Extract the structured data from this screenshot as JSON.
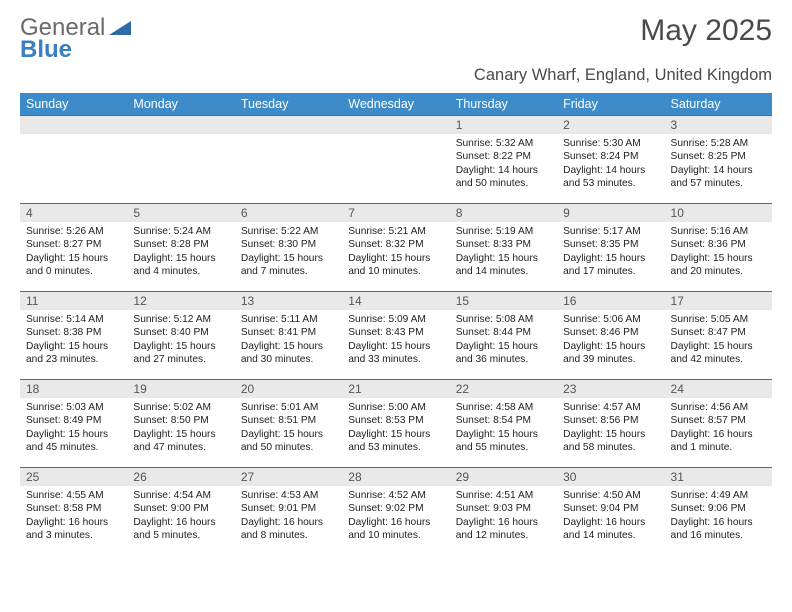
{
  "logo": {
    "text1": "General",
    "text2": "Blue"
  },
  "header": {
    "title": "May 2025",
    "location": "Canary Wharf, England, United Kingdom"
  },
  "colors": {
    "header_bg": "#3d8bc8",
    "daynum_bg": "#e9e9e9",
    "rule": "#3d6fa3",
    "logo_gray": "#6a6a6a",
    "logo_blue": "#3a7fc4"
  },
  "weekdays": [
    "Sunday",
    "Monday",
    "Tuesday",
    "Wednesday",
    "Thursday",
    "Friday",
    "Saturday"
  ],
  "days": [
    {
      "n": 1,
      "sunrise": "5:32 AM",
      "sunset": "8:22 PM",
      "daylight": "14 hours and 50 minutes."
    },
    {
      "n": 2,
      "sunrise": "5:30 AM",
      "sunset": "8:24 PM",
      "daylight": "14 hours and 53 minutes."
    },
    {
      "n": 3,
      "sunrise": "5:28 AM",
      "sunset": "8:25 PM",
      "daylight": "14 hours and 57 minutes."
    },
    {
      "n": 4,
      "sunrise": "5:26 AM",
      "sunset": "8:27 PM",
      "daylight": "15 hours and 0 minutes."
    },
    {
      "n": 5,
      "sunrise": "5:24 AM",
      "sunset": "8:28 PM",
      "daylight": "15 hours and 4 minutes."
    },
    {
      "n": 6,
      "sunrise": "5:22 AM",
      "sunset": "8:30 PM",
      "daylight": "15 hours and 7 minutes."
    },
    {
      "n": 7,
      "sunrise": "5:21 AM",
      "sunset": "8:32 PM",
      "daylight": "15 hours and 10 minutes."
    },
    {
      "n": 8,
      "sunrise": "5:19 AM",
      "sunset": "8:33 PM",
      "daylight": "15 hours and 14 minutes."
    },
    {
      "n": 9,
      "sunrise": "5:17 AM",
      "sunset": "8:35 PM",
      "daylight": "15 hours and 17 minutes."
    },
    {
      "n": 10,
      "sunrise": "5:16 AM",
      "sunset": "8:36 PM",
      "daylight": "15 hours and 20 minutes."
    },
    {
      "n": 11,
      "sunrise": "5:14 AM",
      "sunset": "8:38 PM",
      "daylight": "15 hours and 23 minutes."
    },
    {
      "n": 12,
      "sunrise": "5:12 AM",
      "sunset": "8:40 PM",
      "daylight": "15 hours and 27 minutes."
    },
    {
      "n": 13,
      "sunrise": "5:11 AM",
      "sunset": "8:41 PM",
      "daylight": "15 hours and 30 minutes."
    },
    {
      "n": 14,
      "sunrise": "5:09 AM",
      "sunset": "8:43 PM",
      "daylight": "15 hours and 33 minutes."
    },
    {
      "n": 15,
      "sunrise": "5:08 AM",
      "sunset": "8:44 PM",
      "daylight": "15 hours and 36 minutes."
    },
    {
      "n": 16,
      "sunrise": "5:06 AM",
      "sunset": "8:46 PM",
      "daylight": "15 hours and 39 minutes."
    },
    {
      "n": 17,
      "sunrise": "5:05 AM",
      "sunset": "8:47 PM",
      "daylight": "15 hours and 42 minutes."
    },
    {
      "n": 18,
      "sunrise": "5:03 AM",
      "sunset": "8:49 PM",
      "daylight": "15 hours and 45 minutes."
    },
    {
      "n": 19,
      "sunrise": "5:02 AM",
      "sunset": "8:50 PM",
      "daylight": "15 hours and 47 minutes."
    },
    {
      "n": 20,
      "sunrise": "5:01 AM",
      "sunset": "8:51 PM",
      "daylight": "15 hours and 50 minutes."
    },
    {
      "n": 21,
      "sunrise": "5:00 AM",
      "sunset": "8:53 PM",
      "daylight": "15 hours and 53 minutes."
    },
    {
      "n": 22,
      "sunrise": "4:58 AM",
      "sunset": "8:54 PM",
      "daylight": "15 hours and 55 minutes."
    },
    {
      "n": 23,
      "sunrise": "4:57 AM",
      "sunset": "8:56 PM",
      "daylight": "15 hours and 58 minutes."
    },
    {
      "n": 24,
      "sunrise": "4:56 AM",
      "sunset": "8:57 PM",
      "daylight": "16 hours and 1 minute."
    },
    {
      "n": 25,
      "sunrise": "4:55 AM",
      "sunset": "8:58 PM",
      "daylight": "16 hours and 3 minutes."
    },
    {
      "n": 26,
      "sunrise": "4:54 AM",
      "sunset": "9:00 PM",
      "daylight": "16 hours and 5 minutes."
    },
    {
      "n": 27,
      "sunrise": "4:53 AM",
      "sunset": "9:01 PM",
      "daylight": "16 hours and 8 minutes."
    },
    {
      "n": 28,
      "sunrise": "4:52 AM",
      "sunset": "9:02 PM",
      "daylight": "16 hours and 10 minutes."
    },
    {
      "n": 29,
      "sunrise": "4:51 AM",
      "sunset": "9:03 PM",
      "daylight": "16 hours and 12 minutes."
    },
    {
      "n": 30,
      "sunrise": "4:50 AM",
      "sunset": "9:04 PM",
      "daylight": "16 hours and 14 minutes."
    },
    {
      "n": 31,
      "sunrise": "4:49 AM",
      "sunset": "9:06 PM",
      "daylight": "16 hours and 16 minutes."
    }
  ],
  "layout": {
    "first_weekday_index": 4,
    "rows": 5,
    "cols": 7,
    "label_sunrise": "Sunrise: ",
    "label_sunset": "Sunset: ",
    "label_daylight": "Daylight: "
  }
}
